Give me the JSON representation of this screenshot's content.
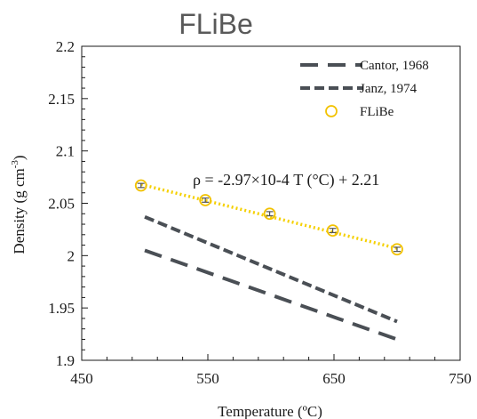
{
  "chart_data": {
    "type": "scatter",
    "title": "FLiBe",
    "xlabel": "Temperature (ºC)",
    "ylabel_main": "Density (g cm",
    "ylabel_sup": "-3",
    "ylabel_close": ")",
    "xlim": [
      450,
      750
    ],
    "ylim": [
      1.9,
      2.2
    ],
    "xticks": [
      "450",
      "550",
      "650",
      "750"
    ],
    "yticks": [
      "1.9",
      "1.95",
      "2",
      "2.05",
      "2.1",
      "2.15",
      "2.2"
    ],
    "annotation": "ρ = -2.97×10-4 T (°C) + 2.21",
    "legend_position": "top-right",
    "series": [
      {
        "name": "Cantor, 1968",
        "kind": "line",
        "style": "long-dash",
        "color": "#4a4f55",
        "x": [
          500,
          700
        ],
        "y": [
          2.005,
          1.92
        ]
      },
      {
        "name": "Janz, 1974",
        "kind": "line",
        "style": "dash",
        "color": "#4a4f55",
        "x": [
          500,
          700
        ],
        "y": [
          2.037,
          1.937
        ]
      },
      {
        "name": "FLiBe",
        "kind": "scatter",
        "color": "#f2c200",
        "x": [
          497,
          548,
          599,
          649,
          700
        ],
        "y": [
          2.067,
          2.053,
          2.04,
          2.024,
          2.006
        ],
        "error": [
          0.002,
          0.002,
          0.002,
          0.002,
          0.002
        ]
      }
    ],
    "trendline": {
      "color": "#f5d000",
      "style": "dotted",
      "x": [
        497,
        700
      ],
      "y": [
        2.068,
        2.007
      ]
    }
  }
}
